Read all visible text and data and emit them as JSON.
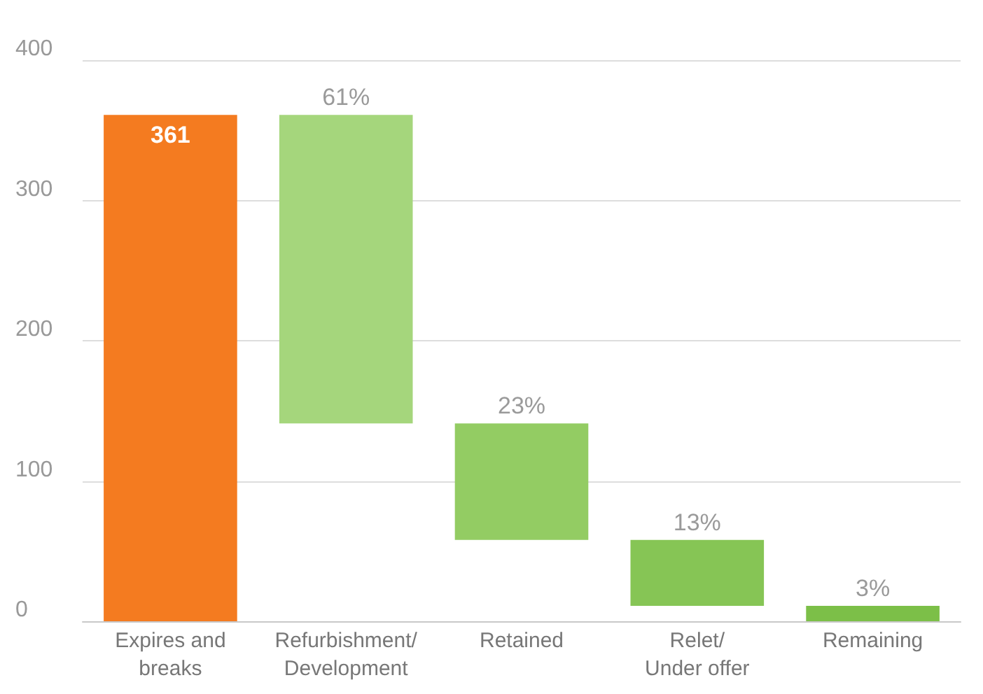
{
  "chart_data": {
    "type": "bar",
    "categories": [
      "Expires and\nbreaks",
      "Refurbishment/\nDevelopment",
      "Retained",
      "Relet/\nUnder offer",
      "Remaining"
    ],
    "values": [
      361,
      220,
      83,
      47,
      11
    ],
    "base": [
      0,
      141,
      58,
      11,
      0
    ],
    "colors": [
      "#f47b20",
      "#a5d67c",
      "#93cc63",
      "#86c555",
      "#7cbf48"
    ],
    "value_labels": [
      "361",
      null,
      null,
      null,
      null
    ],
    "annotations": [
      {
        "text": "61%",
        "x": "Refurbishment/\nDevelopment",
        "y": 361
      },
      {
        "text": "23%",
        "x": "Retained",
        "y": 141
      },
      {
        "text": "13%",
        "x": "Relet/\nUnder offer",
        "y": 58
      },
      {
        "text": "3%",
        "x": "Remaining",
        "y": 11
      }
    ],
    "ylim": [
      0,
      400
    ],
    "yticks": [
      0,
      100,
      200,
      300,
      400
    ],
    "grid": "y"
  }
}
